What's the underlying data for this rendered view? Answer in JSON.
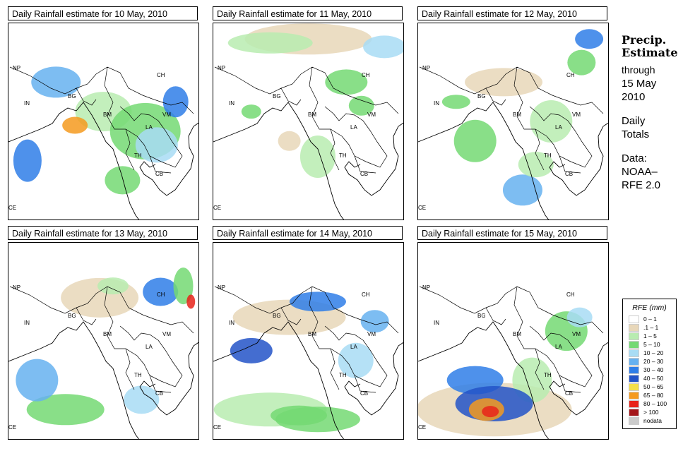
{
  "panels": [
    {
      "title": "Daily Rainfall estimate for  10 May, 2010"
    },
    {
      "title": "Daily Rainfall estimate for  11 May, 2010"
    },
    {
      "title": "Daily Rainfall estimate for  12 May, 2010"
    },
    {
      "title": "Daily Rainfall estimate for  13 May, 2010"
    },
    {
      "title": "Daily Rainfall estimate for  14 May, 2010"
    },
    {
      "title": "Daily Rainfall estimate for  15 May, 2010"
    }
  ],
  "country_labels": [
    "NP",
    "CH",
    "IN",
    "BG",
    "BM",
    "VM",
    "LA",
    "TH",
    "CB",
    "CE"
  ],
  "side": {
    "heading1": "Precip.",
    "heading2": "Estimate",
    "through": "through",
    "date1": "15 May",
    "date2": "2010",
    "daily1": "Daily",
    "daily2": "Totals",
    "data1": "Data:",
    "data2": "NOAA–",
    "data3": "RFE 2.0"
  },
  "legend": {
    "title": "RFE (mm)",
    "items": [
      {
        "label": "0 – 1",
        "color": "#ffffff"
      },
      {
        "label": ".1 – 1",
        "color": "#e8d7b9"
      },
      {
        "label": "1 – 5",
        "color": "#b8ecb0"
      },
      {
        "label": "5 – 10",
        "color": "#74d973"
      },
      {
        "label": "10 – 20",
        "color": "#a8dcf4"
      },
      {
        "label": "20 – 30",
        "color": "#66b1f0"
      },
      {
        "label": "30 – 40",
        "color": "#2f7ee8"
      },
      {
        "label": "40 – 50",
        "color": "#2354c8"
      },
      {
        "label": "50 – 65",
        "color": "#f5df4a"
      },
      {
        "label": "65 – 80",
        "color": "#f59a1e"
      },
      {
        "label": "80 – 100",
        "color": "#e8231a"
      },
      {
        "label": "> 100",
        "color": "#a4161a"
      },
      {
        "label": "nodata",
        "color": "#cccccc"
      }
    ]
  },
  "rain": [
    [
      "#b8ecb0",
      "#74d973",
      "#a8dcf4",
      "#66b1f0",
      "#2f7ee8",
      "#2f7ee8",
      "#74d973",
      "#f59a1e"
    ],
    [
      "#e8d7b9",
      "#b8ecb0",
      "#74d973",
      "#b8ecb0",
      "#74d973",
      "#a8dcf4",
      "#e8d7b9",
      "#74d973"
    ],
    [
      "#e8d7b9",
      "#b8ecb0",
      "#74d973",
      "#66b1f0",
      "#74d973",
      "#b8ecb0",
      "#74d973",
      "#2f7ee8"
    ],
    [
      "#e8d7b9",
      "#b8ecb0",
      "#74d973",
      "#66b1f0",
      "#2f7ee8",
      "#74d973",
      "#a8dcf4",
      "#e8231a"
    ],
    [
      "#e8d7b9",
      "#b8ecb0",
      "#74d973",
      "#a8dcf4",
      "#66b1f0",
      "#2f7ee8",
      "#2354c8",
      "#74d973"
    ],
    [
      "#e8d7b9",
      "#b8ecb0",
      "#74d973",
      "#a8dcf4",
      "#2f7ee8",
      "#2354c8",
      "#f59a1e",
      "#e8231a"
    ]
  ]
}
